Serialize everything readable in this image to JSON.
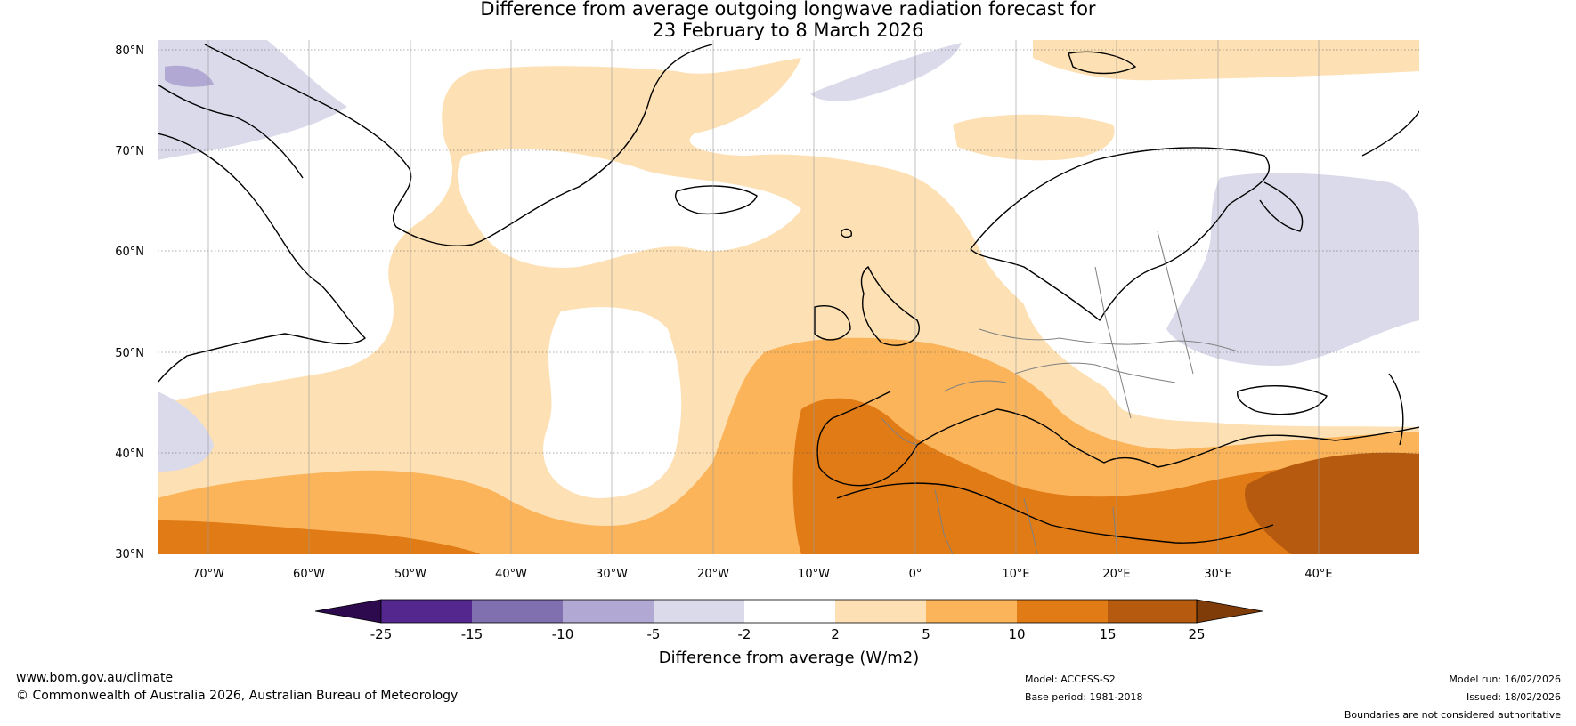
{
  "title": {
    "line1": "Difference from average outgoing longwave radiation forecast for",
    "line2": "23 February to 8 March 2026"
  },
  "lat_labels": [
    "80°N",
    "70°N",
    "60°N",
    "50°N",
    "40°N",
    "30°N"
  ],
  "lon_labels": [
    "70°W",
    "60°W",
    "50°W",
    "40°W",
    "30°W",
    "20°W",
    "10°W",
    "0°",
    "10°E",
    "20°E",
    "30°E",
    "40°E"
  ],
  "colorbar": {
    "ticks": [
      "-25",
      "-15",
      "-10",
      "-5",
      "-2",
      "2",
      "5",
      "10",
      "15",
      "25"
    ],
    "colors": [
      "#2d0a4e",
      "#54278f",
      "#8070b0",
      "#b1a9d3",
      "#dadaeb",
      "#ffffff",
      "#fde0b3",
      "#fbb45a",
      "#e07b16",
      "#b55a0e",
      "#7f3b08"
    ],
    "label": "Difference from average (W/m2)"
  },
  "footer": {
    "website": "www.bom.gov.au/climate",
    "copyright": "© Commonwealth of Australia 2026, Australian Bureau of Meteorology",
    "model": "Model: ACCESS-S2",
    "base_period": "Base period: 1981-2018",
    "model_run": "Model run: 16/02/2026",
    "issued": "Issued: 18/02/2026",
    "disclaimer": "Boundaries are not considered authoritative"
  }
}
